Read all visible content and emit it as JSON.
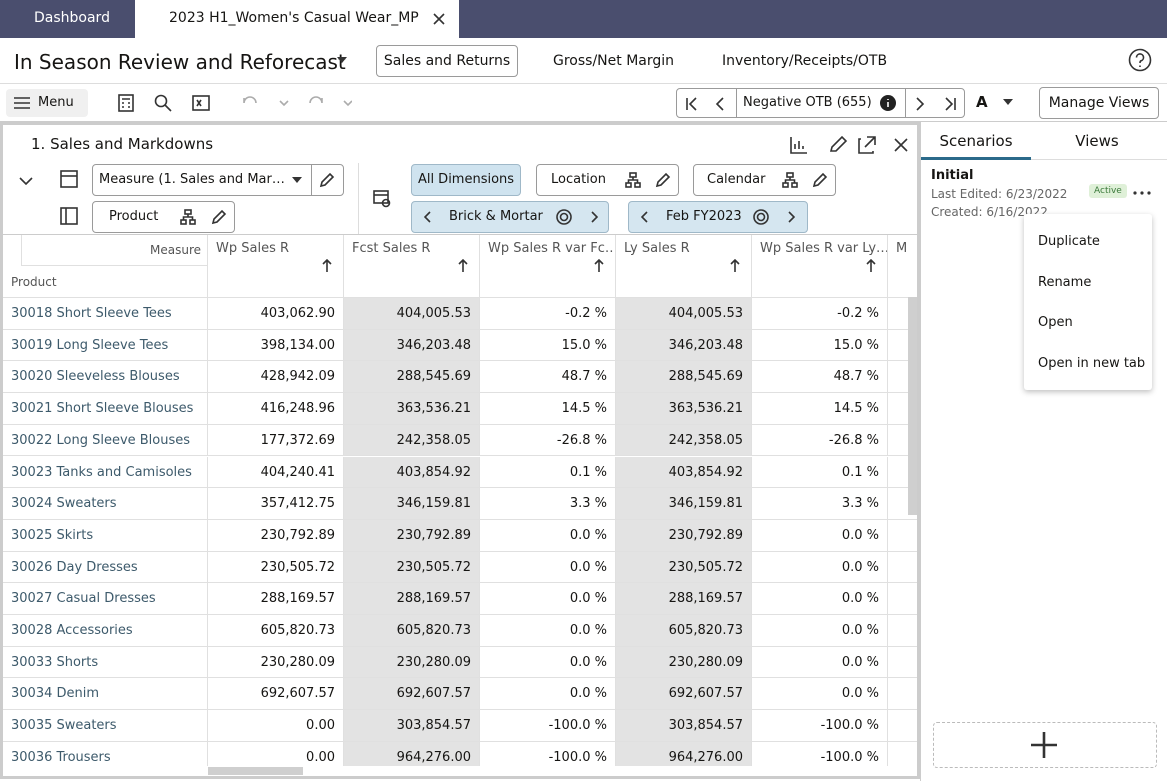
{
  "tabs": [
    "Dashboard",
    "2023 H1_Women's Casual Wear_MP"
  ],
  "header": {
    "title": "In Season Review and Reforecast",
    "nav": [
      "Sales and Returns",
      "Gross/Net Margin",
      "Inventory/Receipts/OTB"
    ]
  },
  "toolbar": {
    "menu": "Menu",
    "filter": "Negative OTB (655)",
    "font": "A",
    "manage_views": "Manage Views"
  },
  "panel": {
    "title": "1. Sales and Markdowns",
    "measure": "Measure (1. Sales and Mar…",
    "product": "Product",
    "all_dimensions": "All Dimensions",
    "location": "Location",
    "calendar": "Calendar",
    "location_value": "Brick & Mortar",
    "calendar_value": "Feb FY2023"
  },
  "table": {
    "corner_measure": "Measure",
    "corner_product": "Product",
    "columns": [
      "Wp Sales R",
      "Fcst Sales R",
      "Wp Sales R var Fc…",
      "Ly Sales R",
      "Wp Sales R var Ly…",
      "M"
    ],
    "rows": [
      [
        "30018 Short Sleeve Tees",
        "403,062.90",
        "404,005.53",
        "-0.2 %",
        "404,005.53",
        "-0.2 %"
      ],
      [
        "30019 Long Sleeve Tees",
        "398,134.00",
        "346,203.48",
        "15.0 %",
        "346,203.48",
        "15.0 %"
      ],
      [
        "30020 Sleeveless Blouses",
        "428,942.09",
        "288,545.69",
        "48.7 %",
        "288,545.69",
        "48.7 %"
      ],
      [
        "30021 Short Sleeve Blouses",
        "416,248.96",
        "363,536.21",
        "14.5 %",
        "363,536.21",
        "14.5 %"
      ],
      [
        "30022 Long Sleeve Blouses",
        "177,372.69",
        "242,358.05",
        "-26.8 %",
        "242,358.05",
        "-26.8 %"
      ],
      [
        "30023 Tanks and Camisoles",
        "404,240.41",
        "403,854.92",
        "0.1 %",
        "403,854.92",
        "0.1 %"
      ],
      [
        "30024 Sweaters",
        "357,412.75",
        "346,159.81",
        "3.3 %",
        "346,159.81",
        "3.3 %"
      ],
      [
        "30025 Skirts",
        "230,792.89",
        "230,792.89",
        "0.0 %",
        "230,792.89",
        "0.0 %"
      ],
      [
        "30026 Day Dresses",
        "230,505.72",
        "230,505.72",
        "0.0 %",
        "230,505.72",
        "0.0 %"
      ],
      [
        "30027 Casual Dresses",
        "288,169.57",
        "288,169.57",
        "0.0 %",
        "288,169.57",
        "0.0 %"
      ],
      [
        "30028 Accessories",
        "605,820.73",
        "605,820.73",
        "0.0 %",
        "605,820.73",
        "0.0 %"
      ],
      [
        "30033 Shorts",
        "230,280.09",
        "230,280.09",
        "0.0 %",
        "230,280.09",
        "0.0 %"
      ],
      [
        "30034 Denim",
        "692,607.57",
        "692,607.57",
        "0.0 %",
        "692,607.57",
        "0.0 %"
      ],
      [
        "30035 Sweaters",
        "0.00",
        "303,854.57",
        "-100.0 %",
        "303,854.57",
        "-100.0 %"
      ],
      [
        "30036 Trousers",
        "0.00",
        "964,276.00",
        "-100.0 %",
        "964,276.00",
        "-100.0 %"
      ]
    ]
  },
  "side": {
    "tabs": [
      "Scenarios",
      "Views"
    ],
    "scenario": "Initial",
    "last_edited": "Last Edited: 6/23/2022",
    "created": "Created: 6/16/2022",
    "status": "Active",
    "menu": [
      "Duplicate",
      "Rename",
      "Open",
      "Open in new tab"
    ]
  }
}
